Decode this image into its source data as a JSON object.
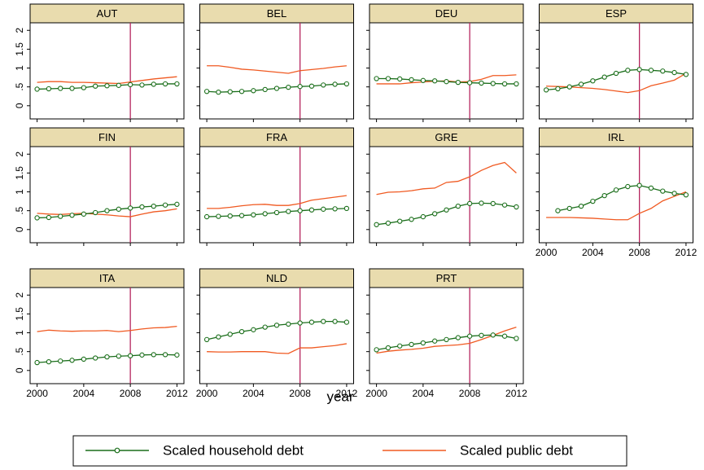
{
  "chart_data": {
    "type": "line",
    "xlabel": "year",
    "x": [
      2000,
      2001,
      2002,
      2003,
      2004,
      2005,
      2006,
      2007,
      2008,
      2009,
      2010,
      2011,
      2012
    ],
    "xlim": [
      1999.4,
      2012.6
    ],
    "xticks": [
      2000,
      2004,
      2008,
      2012
    ],
    "ylim": [
      -0.35,
      2.2
    ],
    "yticks": [
      0,
      {
        "value": 0.5,
        "label": ".5"
      },
      1,
      1.5,
      2
    ],
    "vline": 2008,
    "vline_color": "#b5245e",
    "series": [
      {
        "name": "Scaled household debt",
        "color": "#1a6e1a",
        "marker": "circle"
      },
      {
        "name": "Scaled public debt",
        "color": "#f05a22"
      }
    ],
    "panels": [
      {
        "title": "AUT",
        "series": [
          {
            "values": [
              0.44,
              0.45,
              0.46,
              0.46,
              0.48,
              0.52,
              0.53,
              0.54,
              0.56,
              0.55,
              0.57,
              0.58,
              0.58
            ]
          },
          {
            "values": [
              0.62,
              0.64,
              0.64,
              0.62,
              0.62,
              0.61,
              0.6,
              0.59,
              0.63,
              0.67,
              0.71,
              0.74,
              0.77
            ]
          }
        ]
      },
      {
        "title": "BEL",
        "series": [
          {
            "values": [
              0.38,
              0.36,
              0.37,
              0.38,
              0.4,
              0.43,
              0.46,
              0.49,
              0.51,
              0.52,
              0.55,
              0.57,
              0.58
            ]
          },
          {
            "values": [
              1.06,
              1.06,
              1.02,
              0.97,
              0.95,
              0.92,
              0.89,
              0.86,
              0.93,
              0.96,
              0.99,
              1.03,
              1.06
            ]
          }
        ]
      },
      {
        "title": "DEU",
        "series": [
          {
            "values": [
              0.72,
              0.72,
              0.71,
              0.69,
              0.67,
              0.66,
              0.64,
              0.62,
              0.61,
              0.6,
              0.59,
              0.58,
              0.58
            ]
          },
          {
            "values": [
              0.58,
              0.58,
              0.58,
              0.61,
              0.63,
              0.65,
              0.66,
              0.63,
              0.64,
              0.7,
              0.8,
              0.8,
              0.82
            ]
          }
        ]
      },
      {
        "title": "ESP",
        "series": [
          {
            "values": [
              0.42,
              0.45,
              0.5,
              0.57,
              0.66,
              0.76,
              0.86,
              0.94,
              0.96,
              0.94,
              0.92,
              0.88,
              0.83
            ]
          },
          {
            "values": [
              0.52,
              0.51,
              0.5,
              0.48,
              0.46,
              0.43,
              0.39,
              0.35,
              0.4,
              0.53,
              0.6,
              0.68,
              0.86
            ]
          }
        ]
      },
      {
        "title": "FIN",
        "series": [
          {
            "values": [
              0.31,
              0.32,
              0.35,
              0.38,
              0.41,
              0.45,
              0.5,
              0.54,
              0.57,
              0.6,
              0.62,
              0.65,
              0.67
            ]
          },
          {
            "values": [
              0.43,
              0.41,
              0.4,
              0.42,
              0.43,
              0.41,
              0.39,
              0.36,
              0.34,
              0.41,
              0.47,
              0.5,
              0.55
            ]
          }
        ]
      },
      {
        "title": "FRA",
        "series": [
          {
            "values": [
              0.34,
              0.35,
              0.36,
              0.37,
              0.39,
              0.42,
              0.45,
              0.48,
              0.5,
              0.52,
              0.54,
              0.55,
              0.56
            ]
          },
          {
            "values": [
              0.56,
              0.56,
              0.59,
              0.63,
              0.66,
              0.67,
              0.64,
              0.64,
              0.69,
              0.78,
              0.82,
              0.86,
              0.9
            ]
          }
        ]
      },
      {
        "title": "GRE",
        "series": [
          {
            "values": [
              0.13,
              0.17,
              0.22,
              0.27,
              0.34,
              0.42,
              0.52,
              0.62,
              0.69,
              0.7,
              0.69,
              0.65,
              0.6
            ]
          },
          {
            "values": [
              0.93,
              0.99,
              1.0,
              1.03,
              1.08,
              1.1,
              1.25,
              1.28,
              1.4,
              1.57,
              1.7,
              1.78,
              1.5
            ]
          }
        ]
      },
      {
        "title": "IRL",
        "series": [
          {
            "values": [
              null,
              0.5,
              0.56,
              0.62,
              0.75,
              0.9,
              1.05,
              1.14,
              1.17,
              1.1,
              1.02,
              0.96,
              0.92
            ]
          },
          {
            "values": [
              0.32,
              0.32,
              0.32,
              0.31,
              0.3,
              0.28,
              0.26,
              0.26,
              0.43,
              0.56,
              0.76,
              0.88,
              1.0
            ]
          }
        ]
      },
      {
        "title": "ITA",
        "series": [
          {
            "values": [
              0.21,
              0.23,
              0.25,
              0.27,
              0.3,
              0.33,
              0.36,
              0.38,
              0.39,
              0.41,
              0.42,
              0.42,
              0.41
            ]
          },
          {
            "values": [
              1.03,
              1.07,
              1.05,
              1.04,
              1.05,
              1.05,
              1.06,
              1.03,
              1.06,
              1.1,
              1.13,
              1.14,
              1.17
            ]
          }
        ]
      },
      {
        "title": "NLD",
        "series": [
          {
            "values": [
              0.82,
              0.89,
              0.96,
              1.03,
              1.08,
              1.15,
              1.2,
              1.23,
              1.26,
              1.28,
              1.3,
              1.3,
              1.28
            ]
          },
          {
            "values": [
              0.5,
              0.49,
              0.49,
              0.5,
              0.5,
              0.5,
              0.46,
              0.45,
              0.6,
              0.6,
              0.63,
              0.66,
              0.71
            ]
          }
        ]
      },
      {
        "title": "PRT",
        "series": [
          {
            "values": [
              0.55,
              0.6,
              0.65,
              0.69,
              0.73,
              0.78,
              0.82,
              0.87,
              0.91,
              0.93,
              0.94,
              0.91,
              0.85
            ]
          },
          {
            "values": [
              0.46,
              0.51,
              0.54,
              0.56,
              0.59,
              0.64,
              0.66,
              0.68,
              0.72,
              0.82,
              0.93,
              1.05,
              1.15
            ]
          }
        ]
      }
    ]
  }
}
